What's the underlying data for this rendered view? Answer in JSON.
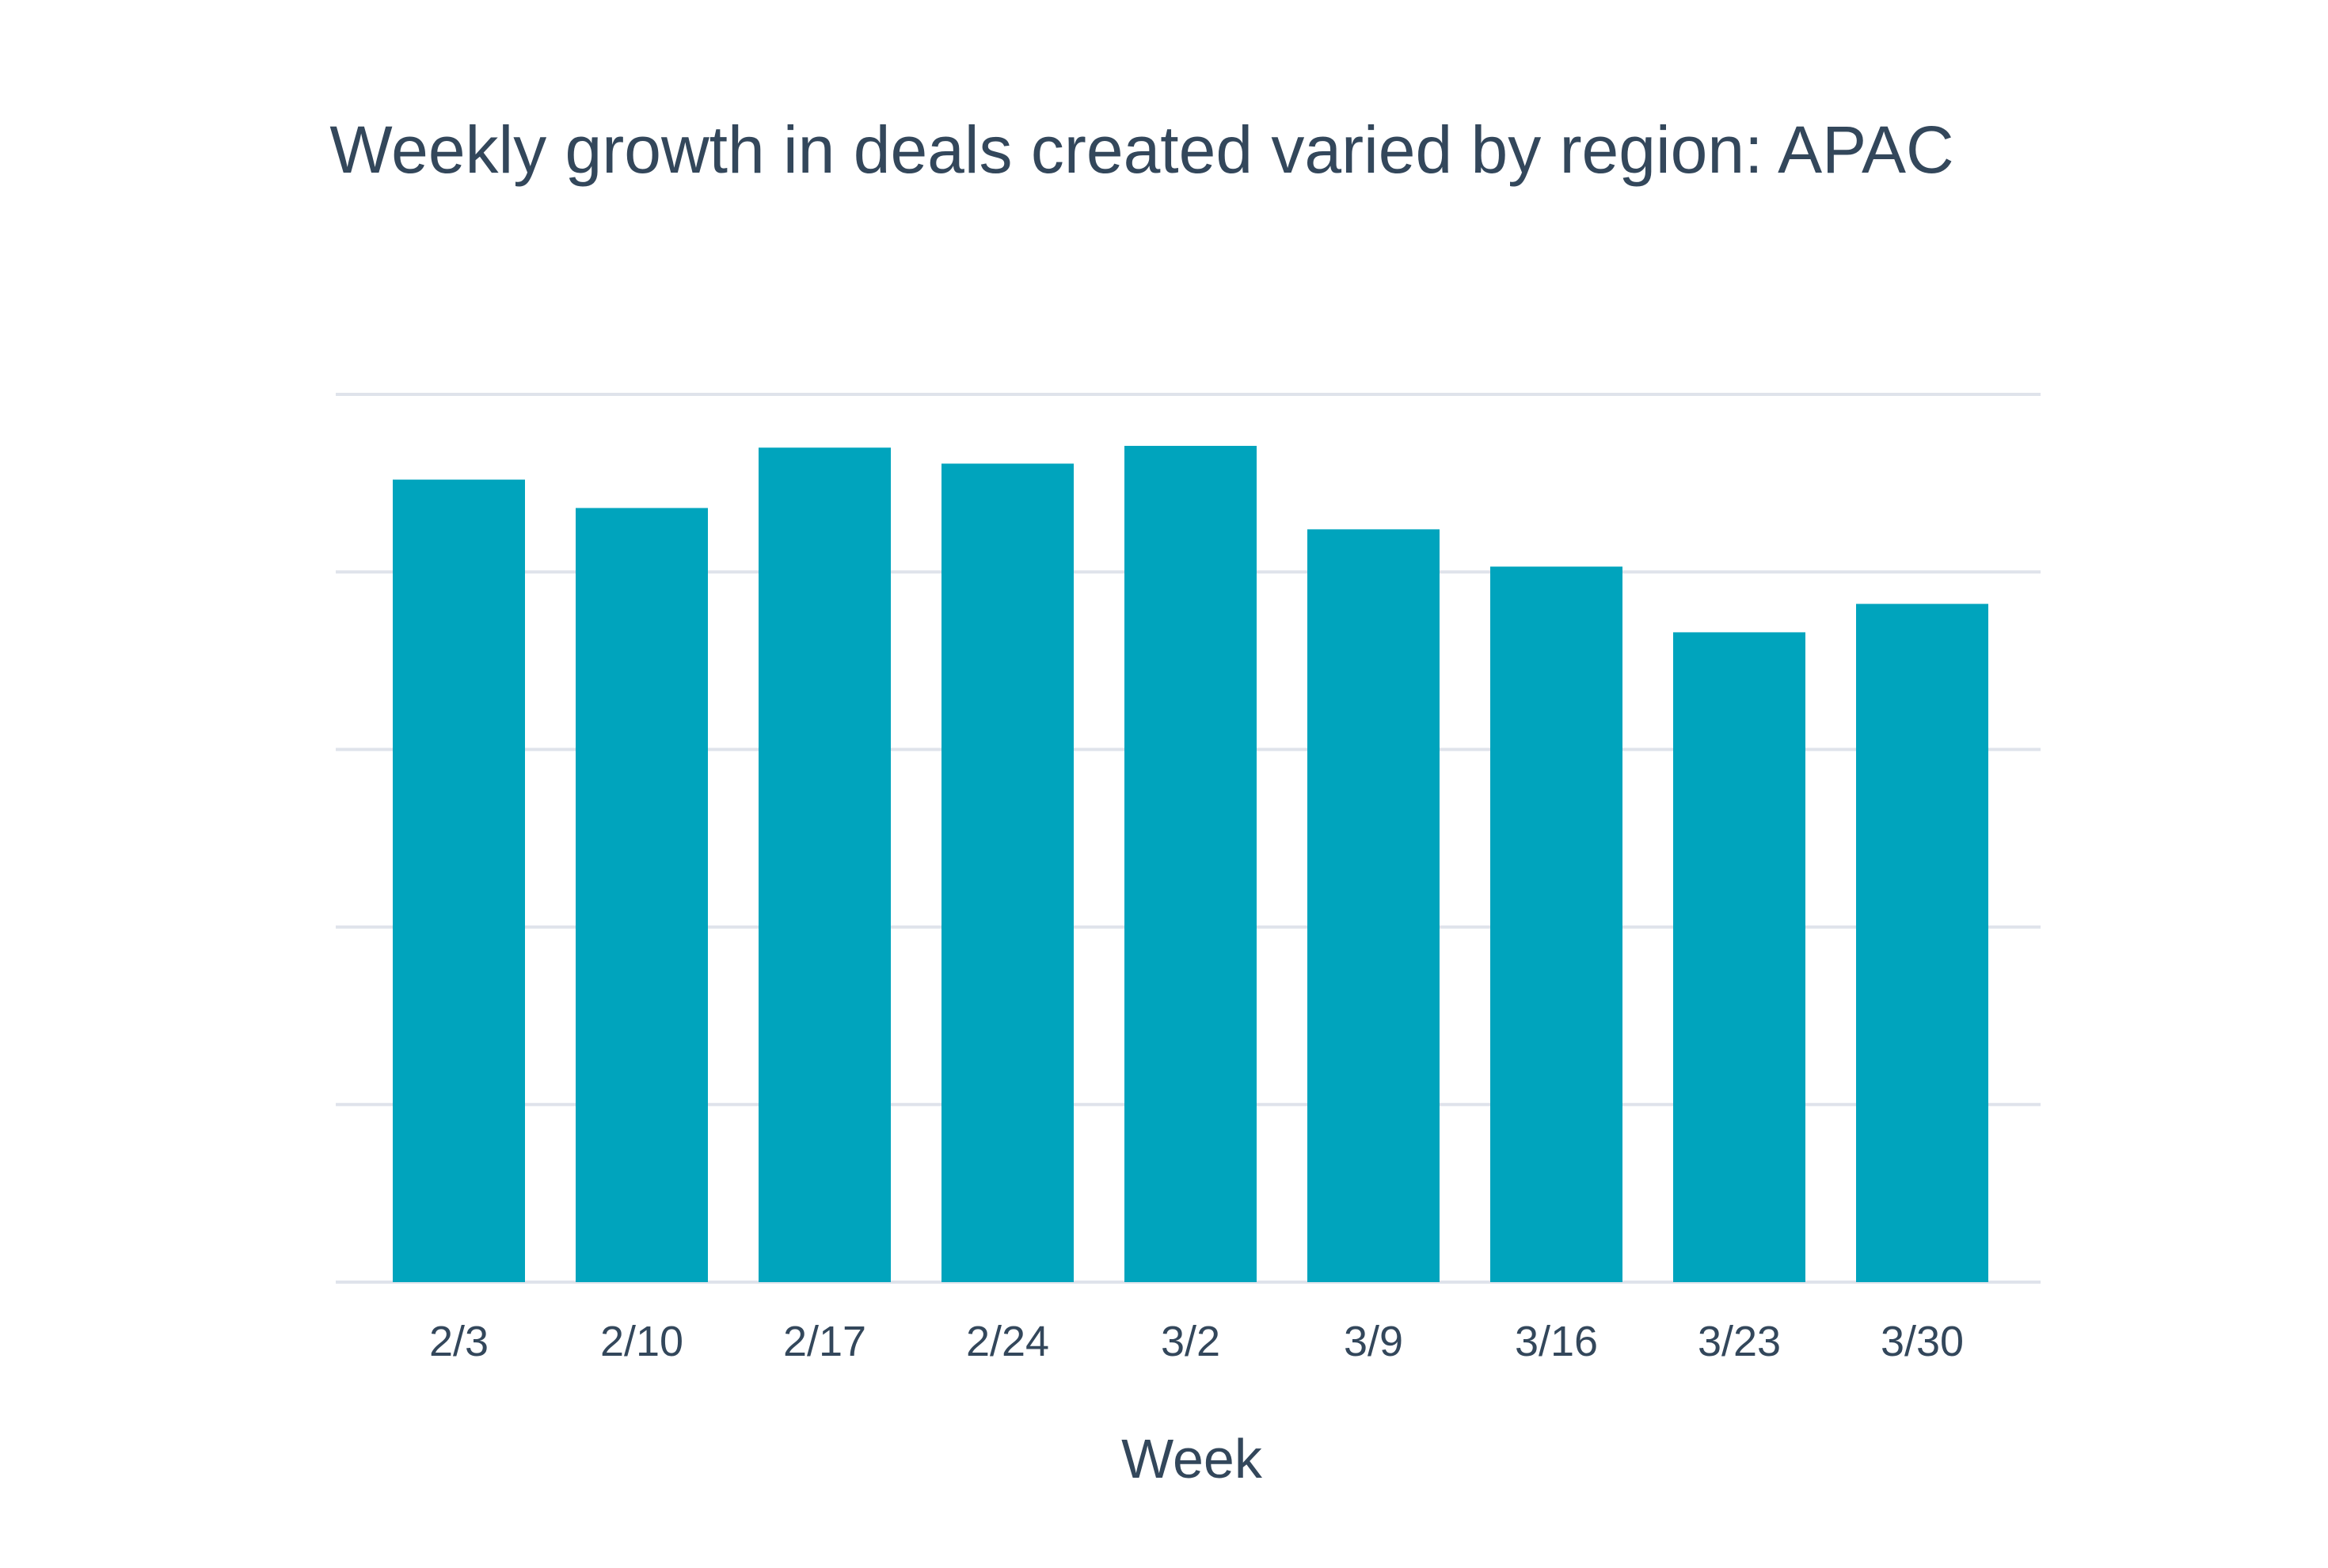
{
  "chart_data": {
    "type": "bar",
    "title": "Weekly growth in deals created varied by region: APAC",
    "xlabel": "Week",
    "ylabel": "",
    "categories": [
      "2/3",
      "2/10",
      "2/17",
      "2/24",
      "3/2",
      "3/9",
      "3/16",
      "3/23",
      "3/30"
    ],
    "values": [
      4.52,
      4.36,
      4.7,
      4.61,
      4.71,
      4.24,
      4.03,
      3.66,
      3.82
    ],
    "ylim": [
      0,
      5
    ],
    "grid": true,
    "y_tick_labels_shown": false,
    "legend": "none",
    "colors": {
      "bar": "#00a4bd",
      "text": "#33475b",
      "grid": "#dfe3eb"
    }
  }
}
